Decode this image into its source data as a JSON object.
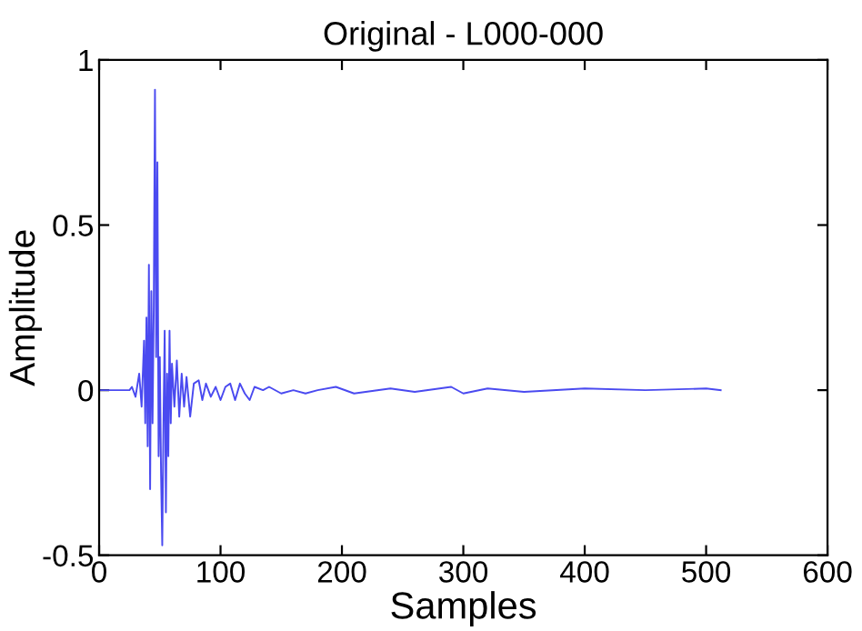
{
  "chart_data": {
    "type": "line",
    "title": "Original - L000-000",
    "xlabel": "Samples",
    "ylabel": "Amplitude",
    "xlim": [
      0,
      600
    ],
    "xticks": [
      0,
      100,
      200,
      300,
      400,
      500,
      600
    ],
    "ylim": [
      -0.5,
      1
    ],
    "yticks": [
      -0.5,
      0,
      0.5,
      1
    ],
    "grid": false,
    "legend": false,
    "series": [
      {
        "color": "#4a4af0",
        "x": [
          0,
          10,
          20,
          25,
          27,
          30,
          33,
          35,
          37,
          38,
          39,
          40,
          41,
          42,
          43,
          44,
          45,
          46,
          47,
          48,
          49,
          50,
          51,
          52,
          53,
          54,
          55,
          56,
          57,
          58,
          59,
          60,
          62,
          64,
          66,
          68,
          70,
          72,
          75,
          78,
          82,
          85,
          88,
          92,
          96,
          100,
          104,
          108,
          112,
          116,
          120,
          124,
          128,
          135,
          140,
          150,
          160,
          170,
          180,
          195,
          210,
          240,
          260,
          290,
          300,
          320,
          350,
          400,
          450,
          500,
          512
        ],
        "values": [
          0,
          0,
          0,
          0,
          0.01,
          -0.02,
          0.05,
          -0.05,
          0.15,
          -0.1,
          0.22,
          -0.17,
          0.38,
          -0.3,
          0.3,
          -0.1,
          0.25,
          0.91,
          0.1,
          0.69,
          -0.2,
          0.1,
          -0.25,
          -0.47,
          -0.1,
          0.18,
          -0.37,
          0.05,
          -0.2,
          0.18,
          -0.1,
          0.08,
          -0.05,
          0.09,
          -0.08,
          0.05,
          -0.05,
          0.04,
          -0.08,
          0.02,
          0.03,
          -0.03,
          0.02,
          -0.02,
          0.01,
          -0.03,
          0.01,
          0.02,
          -0.03,
          0.02,
          -0.01,
          -0.03,
          0.01,
          0,
          0.01,
          -0.01,
          0,
          -0.01,
          0,
          0.01,
          -0.01,
          0.005,
          -0.005,
          0.01,
          -0.01,
          0.005,
          -0.005,
          0.005,
          0,
          0.005,
          0
        ]
      }
    ]
  }
}
